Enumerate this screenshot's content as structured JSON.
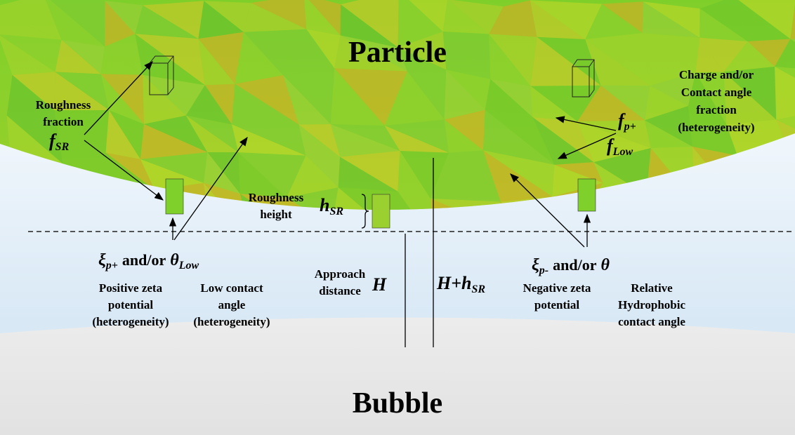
{
  "particle_label": "Particle",
  "bubble_label": "Bubble",
  "roughness_fraction": {
    "lines": [
      "Roughness",
      "fraction"
    ],
    "symbol": {
      "base": "f",
      "sub": "SR"
    }
  },
  "charge_fraction": {
    "lines": [
      "Charge and/or",
      "Contact angle",
      "fraction",
      "(heterogeneity)"
    ],
    "symbols": [
      {
        "base": "f",
        "sub": "p+"
      },
      {
        "base": "f",
        "sub": "Low"
      }
    ]
  },
  "roughness_height": {
    "lines": [
      "Roughness",
      "height"
    ],
    "symbol": {
      "base": "h",
      "sub": "SR"
    }
  },
  "left_property": {
    "symbol1": {
      "base": "ξ",
      "sub": "p+"
    },
    "connector": "and/or",
    "symbol2": {
      "base": "θ",
      "sub": "Low"
    }
  },
  "positive_zeta": [
    "Positive zeta",
    "potential",
    "(heterogeneity)"
  ],
  "low_contact": [
    "Low contact",
    "angle",
    "(heterogeneity)"
  ],
  "approach": {
    "lines": [
      "Approach",
      "distance"
    ],
    "symbol": "H"
  },
  "total_distance": {
    "base": "H+h",
    "sub": "SR"
  },
  "right_property": {
    "symbol1": {
      "base": "ξ",
      "sub": "p-"
    },
    "connector": "and/or",
    "symbol2": "θ"
  },
  "negative_zeta": [
    "Negative zeta",
    "potential"
  ],
  "hydrophobic": [
    "Relative",
    "Hydrophobic",
    "contact angle"
  ]
}
